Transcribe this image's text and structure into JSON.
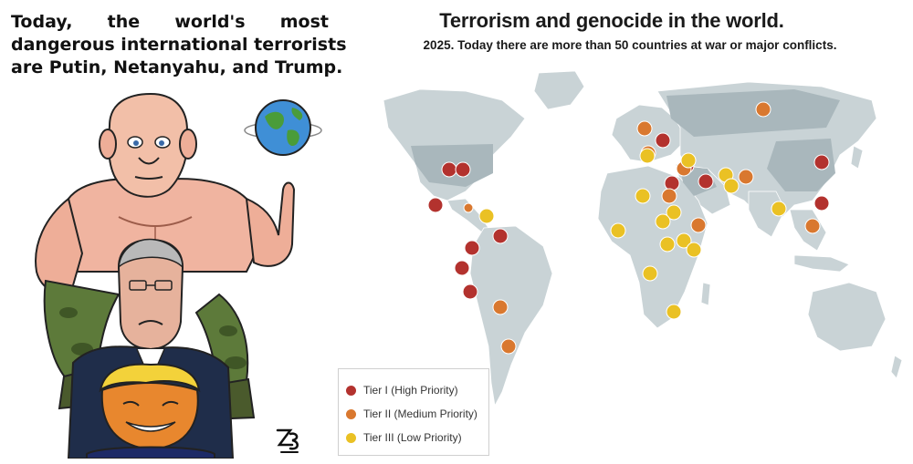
{
  "caption": {
    "line1_words": [
      "Today,",
      "the",
      "world's",
      "most"
    ],
    "line2": "dangerous international terrorists",
    "line3": "are Putin, Netanyahu, and Trump."
  },
  "map": {
    "title": "Terrorism and genocide in the world.",
    "subtitle": "2025. Today there are more than 50 countries at war or major conflicts.",
    "colors": {
      "ocean": "#ffffff",
      "land": "#c9d3d6",
      "land_highlight": "#a9b7bc",
      "tier1": "#b3322e",
      "tier2": "#d9782f",
      "tier3": "#eac124"
    }
  },
  "legend": {
    "items": [
      {
        "label": "Tier I (High Priority)",
        "color": "#b3322e"
      },
      {
        "label": "Tier II (Medium Priority)",
        "color": "#d9782f"
      },
      {
        "label": "Tier III (Low Priority)",
        "color": "#eac124"
      }
    ]
  },
  "cartoon": {
    "signature_icon": "artist-signature-icon",
    "globe_icon": "globe-icon"
  }
}
